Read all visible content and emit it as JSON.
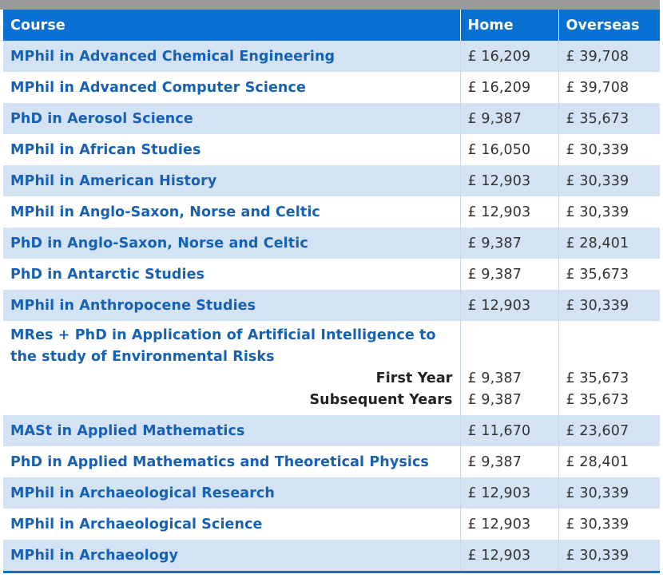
{
  "table": {
    "headers": [
      "Course",
      "Home",
      "Overseas"
    ],
    "rows": [
      {
        "course": "MPhil in Advanced Chemical Engineering",
        "home": "£ 16,209",
        "overseas": "£ 39,708"
      },
      {
        "course": "MPhil in Advanced Computer Science",
        "home": "£ 16,209",
        "overseas": "£ 39,708"
      },
      {
        "course": "PhD in Aerosol Science",
        "home": "£ 9,387",
        "overseas": "£ 35,673"
      },
      {
        "course": "MPhil in African Studies",
        "home": "£ 16,050",
        "overseas": "£ 30,339"
      },
      {
        "course": "MPhil in American History",
        "home": "£ 12,903",
        "overseas": "£ 30,339"
      },
      {
        "course": "MPhil in Anglo-Saxon, Norse and Celtic",
        "home": "£ 12,903",
        "overseas": "£ 30,339"
      },
      {
        "course": "PhD in Anglo-Saxon, Norse and Celtic",
        "home": "£ 9,387",
        "overseas": "£ 28,401"
      },
      {
        "course": "PhD in Antarctic Studies",
        "home": "£ 9,387",
        "overseas": "£ 35,673"
      },
      {
        "course": "MPhil in Anthropocene Studies",
        "home": "£ 12,903",
        "overseas": "£ 30,339"
      },
      {
        "course": "MRes + PhD in Application of Artificial Intelligence to the study of Environmental Risks",
        "sub": [
          {
            "label": "First Year",
            "home": "£ 9,387",
            "overseas": "£ 35,673"
          },
          {
            "label": "Subsequent Years",
            "home": "£ 9,387",
            "overseas": "£ 35,673"
          }
        ]
      },
      {
        "course": "MASt in Applied Mathematics",
        "home": "£ 11,670",
        "overseas": "£ 23,607"
      },
      {
        "course": "PhD in Applied Mathematics and Theoretical Physics",
        "home": "£ 9,387",
        "overseas": "£ 28,401"
      },
      {
        "course": "MPhil in Archaeological Research",
        "home": "£ 12,903",
        "overseas": "£ 30,339"
      },
      {
        "course": "MPhil in Archaeological Science",
        "home": "£ 12,903",
        "overseas": "£ 30,339"
      },
      {
        "course": "MPhil in Archaeology",
        "home": "£ 12,903",
        "overseas": "£ 30,339"
      }
    ]
  },
  "colors": {
    "header_bg": "#0870d2",
    "row_alt_bg": "#d3e3f4",
    "link": "#1761b4",
    "top_bar": "#9b9b9b"
  }
}
